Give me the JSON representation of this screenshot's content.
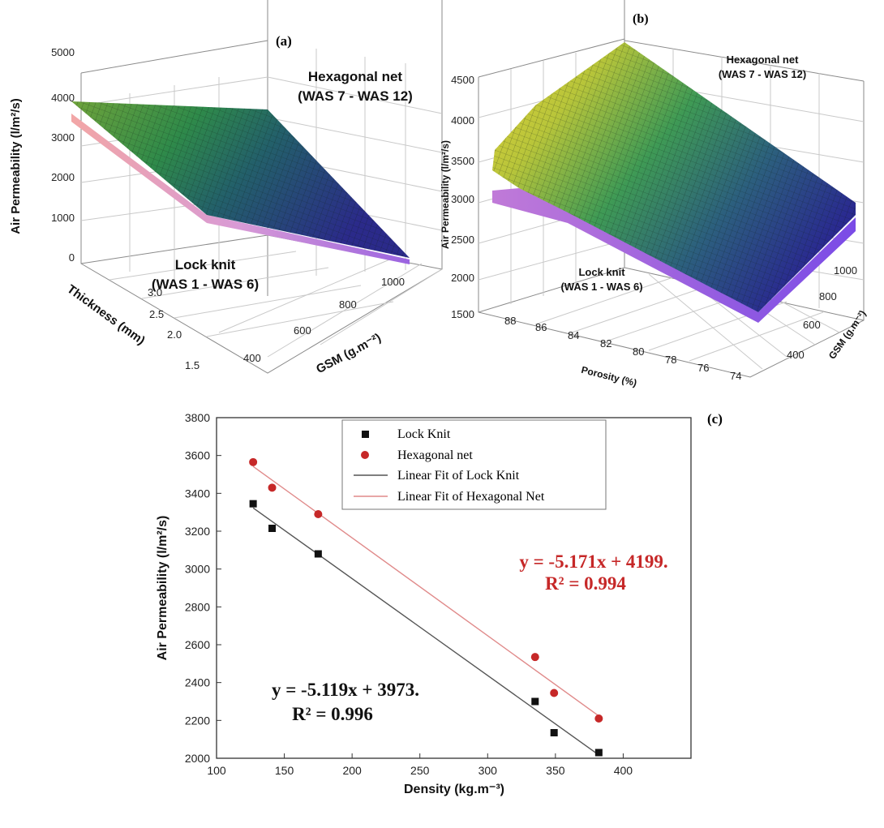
{
  "chart_data": [
    {
      "type": "surface",
      "panel": "(a)",
      "zlabel": "Air Permeability (l/m²/s)",
      "xlabel": "Thickness (mm)",
      "ylabel": "GSM (g.m⁻²)",
      "z_ticks": [
        "0",
        "1000",
        "2000",
        "3000",
        "4000",
        "5000"
      ],
      "x_ticks": [
        "3.0",
        "2.5",
        "2.0",
        "1.5"
      ],
      "y_ticks": [
        "400",
        "600",
        "800",
        "1000"
      ],
      "zlim": [
        0,
        5000
      ],
      "series": [
        {
          "name": "Hexagonal net",
          "group": "(WAS 7 - WAS 12)"
        },
        {
          "name": "Lock knit",
          "group": "(WAS 1 - WAS 6)"
        }
      ]
    },
    {
      "type": "surface",
      "panel": "(b)",
      "zlabel": "Air Permeability (l/m²/s)",
      "xlabel": "Porosity (%)",
      "ylabel": "GSM (g.m⁻²)",
      "z_ticks": [
        "1500",
        "2000",
        "2500",
        "3000",
        "3500",
        "4000",
        "4500"
      ],
      "x_ticks": [
        "88",
        "86",
        "84",
        "82",
        "80",
        "78",
        "76",
        "74"
      ],
      "y_ticks": [
        "400",
        "600",
        "800",
        "1000"
      ],
      "zlim": [
        1500,
        4500
      ],
      "series": [
        {
          "name": "Hexagonal net",
          "group": "(WAS 7 - WAS 12)"
        },
        {
          "name": "Lock knit",
          "group": "(WAS 1 - WAS 6)"
        }
      ]
    },
    {
      "type": "scatter",
      "panel": "(c)",
      "xlabel": "Density (kg.m⁻³)",
      "ylabel": "Air Permeability (l/m²/s)",
      "xlim": [
        100,
        450
      ],
      "ylim": [
        2000,
        3800
      ],
      "x_ticks": [
        100,
        150,
        200,
        250,
        300,
        350,
        400
      ],
      "y_ticks": [
        2000,
        2200,
        2400,
        2600,
        2800,
        3000,
        3200,
        3400,
        3600,
        3800
      ],
      "legend_position": "top",
      "series": [
        {
          "name": "Lock Knit",
          "marker": "square",
          "color": "#111111",
          "x": [
            127,
            141,
            175,
            335,
            349,
            382
          ],
          "y": [
            3345,
            3215,
            3080,
            2300,
            2135,
            2030
          ]
        },
        {
          "name": "Hexagonal net",
          "marker": "circle",
          "color": "#c62828",
          "x": [
            127,
            141,
            175,
            335,
            349,
            382
          ],
          "y": [
            3565,
            3430,
            3290,
            2535,
            2345,
            2210
          ]
        }
      ],
      "fits": [
        {
          "name": "Linear Fit of Lock Knit",
          "color": "#555555",
          "slope": -5.119,
          "intercept": 3973,
          "x_range": [
            127,
            382
          ]
        },
        {
          "name": "Linear Fit of Hexagonal Net",
          "color": "#e08a8a",
          "slope": -5.171,
          "intercept": 4199,
          "x_range": [
            127,
            382
          ]
        }
      ],
      "annotations": {
        "lock_eq": "y = -5.119x + 3973.",
        "lock_r2": "R² = 0.996",
        "hex_eq": "y = -5.171x + 4199.",
        "hex_r2": "R² = 0.994",
        "hex_color": "#c62828"
      }
    }
  ]
}
